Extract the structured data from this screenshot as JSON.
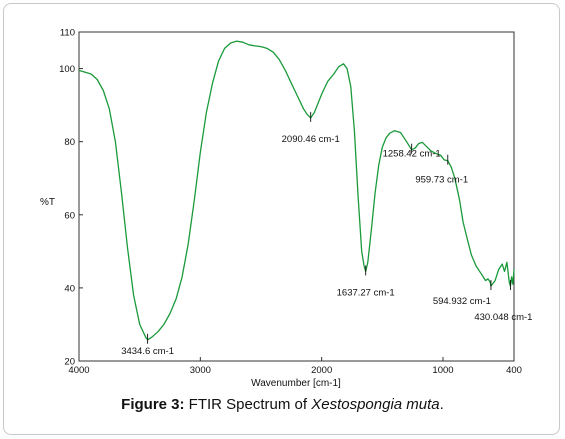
{
  "figure": {
    "label": "Figure 3:",
    "caption_text": " FTIR Spectrum of ",
    "caption_species": "Xestospongia muta",
    "caption_end": "."
  },
  "chart_data": {
    "type": "line",
    "title": "",
    "xlabel": "Wavenumber [cm-1]",
    "ylabel": "%T",
    "xlim": [
      4000,
      400
    ],
    "ylim": [
      20,
      110
    ],
    "x_ticks": [
      4000,
      3000,
      2000,
      1000,
      400
    ],
    "y_ticks": [
      20,
      40,
      60,
      80,
      100,
      110
    ],
    "grid": false,
    "line_color": "#1a9a3a",
    "series": [
      {
        "x": [
          4000,
          3900,
          3850,
          3800,
          3750,
          3700,
          3650,
          3600,
          3550,
          3500,
          3450,
          3434.6,
          3400,
          3350,
          3300,
          3250,
          3200,
          3150,
          3100,
          3050,
          3000,
          2950,
          2900,
          2850,
          2800,
          2750,
          2700,
          2650,
          2600,
          2550,
          2500,
          2450,
          2400,
          2350,
          2300,
          2250,
          2200,
          2150,
          2120,
          2090.46,
          2060,
          2000,
          1950,
          1900,
          1860,
          1820,
          1790,
          1760,
          1730,
          1700,
          1670,
          1650,
          1637.27,
          1620,
          1590,
          1560,
          1530,
          1500,
          1470,
          1440,
          1400,
          1350,
          1300,
          1258.42,
          1230,
          1200,
          1170,
          1130,
          1100,
          1060,
          1020,
          990,
          959.73,
          930,
          900,
          860,
          830,
          800,
          760,
          720,
          680,
          640,
          620,
          600,
          594.932,
          560,
          530,
          500,
          480,
          460,
          440,
          430.048,
          420,
          410,
          400
        ],
        "y": [
          99.5,
          98.5,
          97,
          94,
          89,
          80,
          66,
          51,
          38,
          30,
          26.5,
          25.8,
          26.5,
          28,
          30,
          33,
          37,
          43,
          52,
          64,
          77,
          88,
          96,
          102,
          105.5,
          107,
          107.5,
          107.2,
          106.5,
          106.2,
          106,
          105.5,
          104.5,
          102.5,
          99.5,
          96,
          92.5,
          89,
          87.5,
          86.5,
          88,
          93,
          96.5,
          98.5,
          100.5,
          101.3,
          100,
          95,
          83,
          65,
          50,
          46,
          44.5,
          47,
          56,
          66,
          73.5,
          78.5,
          81,
          82.3,
          83,
          82.5,
          80,
          77.8,
          78.2,
          79.5,
          79.8,
          78.5,
          77.5,
          76.8,
          76.3,
          75,
          74.8,
          73,
          70,
          64,
          58,
          54,
          49,
          46,
          44,
          42,
          42.5,
          41.5,
          40.5,
          42,
          45,
          46.5,
          44.5,
          47,
          41.5,
          40.5,
          43,
          41,
          45
        ]
      }
    ],
    "annotations": [
      {
        "x": 3434.6,
        "y": 25.8,
        "text": "3434.6 cm-1"
      },
      {
        "x": 2090.46,
        "y": 86.5,
        "text": "2090.46 cm-1"
      },
      {
        "x": 1637.27,
        "y": 44.5,
        "text": "1637.27 cm-1"
      },
      {
        "x": 1258.42,
        "y": 77.8,
        "text": "1258.42 cm-1"
      },
      {
        "x": 959.73,
        "y": 74.8,
        "text": "959.73 cm-1"
      },
      {
        "x": 594.932,
        "y": 40.5,
        "text": "594.932 cm-1"
      },
      {
        "x": 430.048,
        "y": 40.5,
        "text": "430.048 cm-1"
      }
    ]
  }
}
